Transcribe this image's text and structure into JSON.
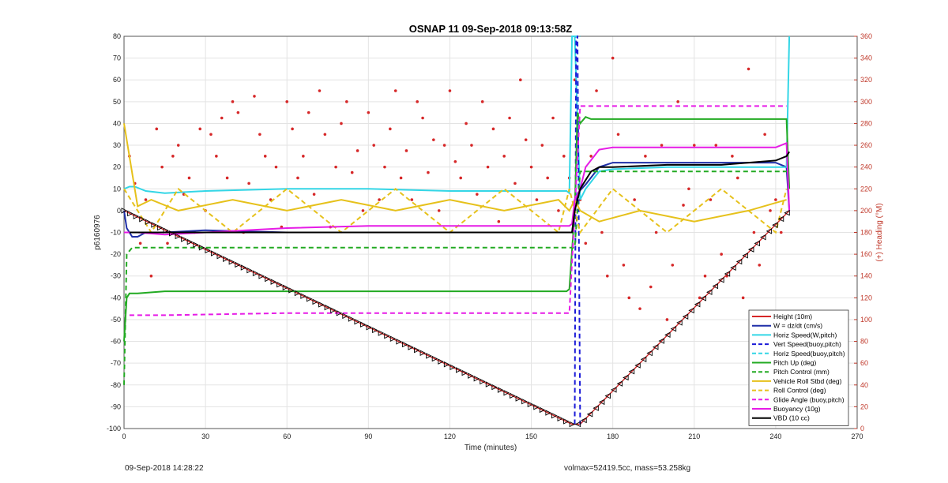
{
  "chart_data": {
    "type": "line",
    "title": "OSNAP 11 09-Sep-2018 09:13:58Z",
    "xlabel": "Time (minutes)",
    "ylabel": "p6160976",
    "ylabel_right": "(+) Heading (°M)",
    "xlim": [
      0,
      270
    ],
    "ylim": [
      -100,
      80
    ],
    "ylim_right": [
      0,
      360
    ],
    "xticks": [
      0,
      30,
      60,
      90,
      120,
      150,
      180,
      210,
      240,
      270
    ],
    "yticks": [
      80,
      70,
      60,
      50,
      40,
      30,
      20,
      10,
      0,
      -10,
      -20,
      -30,
      -40,
      -50,
      -60,
      -70,
      -80,
      -90,
      -100
    ],
    "yticks_right": [
      360,
      340,
      320,
      300,
      280,
      260,
      240,
      220,
      200,
      180,
      160,
      140,
      120,
      100,
      80,
      60,
      40,
      20,
      0
    ],
    "grid": true,
    "legend_position": "bottom-right",
    "series": [
      {
        "name": "Height (10m)",
        "color": "#d62728",
        "style": "solid",
        "x": [
          0,
          165,
          168,
          245
        ],
        "y": [
          0,
          -98,
          -98,
          0
        ]
      },
      {
        "name": "W = dz/dt (cm/s)",
        "color": "#1f2fa8",
        "style": "solid",
        "x": [
          0,
          1,
          3,
          5,
          8,
          15,
          30,
          60,
          90,
          120,
          150,
          164,
          165,
          166,
          167,
          170,
          175,
          180,
          200,
          220,
          240,
          244,
          245
        ],
        "y": [
          0,
          -8,
          -12,
          -12,
          -10,
          -10,
          -9,
          -10,
          -10,
          -10,
          -10,
          -10,
          -10,
          0,
          8,
          12,
          20,
          22,
          22,
          22,
          22,
          20,
          0
        ]
      },
      {
        "name": "Horiz Speed(W,pitch)",
        "color": "#33d6e6",
        "style": "solid",
        "x": [
          0,
          2,
          4,
          8,
          15,
          30,
          60,
          90,
          120,
          150,
          163,
          164,
          165,
          166,
          168,
          170,
          175,
          180,
          200,
          220,
          240,
          244,
          245
        ],
        "y": [
          10,
          11,
          11,
          9,
          8,
          9,
          10,
          10,
          9,
          9,
          9,
          8,
          80,
          80,
          5,
          10,
          18,
          19,
          20,
          20,
          20,
          20,
          80
        ]
      },
      {
        "name": "Vert Speed(buoy,pitch)",
        "color": "#1b1bd8",
        "style": "dashed",
        "x": [
          166,
          166.5,
          167,
          168
        ],
        "y": [
          -98,
          80,
          80,
          -98
        ]
      },
      {
        "name": "Horiz Speed(buoy,pitch)",
        "color": "#33d6e6",
        "style": "dashed",
        "x": [
          165,
          168
        ],
        "y": [
          80,
          80
        ]
      },
      {
        "name": "Pitch Up (deg)",
        "color": "#22aa22",
        "style": "solid",
        "x": [
          0,
          1,
          2,
          5,
          15,
          30,
          60,
          90,
          120,
          150,
          163,
          164,
          166,
          167,
          168,
          170,
          172,
          180,
          200,
          220,
          240,
          244,
          245
        ],
        "y": [
          -60,
          -40,
          -38,
          -38,
          -37,
          -37,
          -37,
          -37,
          -37,
          -37,
          -37,
          -36,
          0,
          45,
          40,
          43,
          42,
          42,
          42,
          42,
          42,
          42,
          10
        ]
      },
      {
        "name": "Pitch Control (mm)",
        "color": "#22aa22",
        "style": "dashed",
        "x": [
          0,
          1,
          3,
          164,
          165,
          166,
          168,
          244,
          245
        ],
        "y": [
          -80,
          -20,
          -17,
          -17,
          -17,
          -17,
          18,
          18,
          18
        ]
      },
      {
        "name": "Vehicle Roll Stbd (deg)",
        "color": "#e6c11b",
        "style": "solid",
        "x": [
          0,
          5,
          10,
          20,
          40,
          60,
          80,
          100,
          120,
          140,
          160,
          164,
          166,
          168,
          175,
          190,
          210,
          230,
          244
        ],
        "y": [
          40,
          2,
          5,
          0,
          5,
          0,
          5,
          0,
          5,
          0,
          5,
          0,
          5,
          0,
          -5,
          0,
          -5,
          0,
          5
        ]
      },
      {
        "name": "Roll Control (deg)",
        "color": "#e6c11b",
        "style": "dashed",
        "x": [
          0,
          10,
          20,
          40,
          60,
          80,
          100,
          120,
          140,
          160,
          164,
          168,
          180,
          200,
          220,
          240,
          244
        ],
        "y": [
          10,
          -10,
          10,
          -10,
          10,
          -10,
          10,
          -10,
          10,
          -10,
          10,
          -10,
          10,
          -10,
          10,
          -10,
          10
        ]
      },
      {
        "name": "Glide Angle (buoy,pitch)",
        "color": "#e61be6",
        "style": "dashed",
        "x": [
          2,
          15,
          60,
          90,
          120,
          150,
          164,
          168,
          170,
          180,
          200,
          220,
          240,
          244
        ],
        "y": [
          -48,
          -48,
          -47,
          -47,
          -47,
          -47,
          -47,
          48,
          48,
          48,
          48,
          48,
          48,
          48
        ]
      },
      {
        "name": "Buoyancy (10g)",
        "color": "#e61be6",
        "style": "solid",
        "x": [
          0,
          5,
          15,
          30,
          60,
          90,
          120,
          150,
          164,
          165,
          166,
          168,
          170,
          175,
          180,
          200,
          220,
          240,
          244,
          245
        ],
        "y": [
          -10,
          -10,
          -11,
          -10,
          -8,
          -7,
          -7,
          -7,
          -7,
          -6,
          5,
          10,
          20,
          28,
          29,
          29,
          29,
          29,
          31,
          0
        ]
      },
      {
        "name": "VBD (10 cc)",
        "color": "#000000",
        "style": "solid",
        "x": [
          2,
          15,
          30,
          60,
          90,
          120,
          150,
          164,
          165,
          166,
          168,
          170,
          172,
          175,
          180,
          200,
          220,
          240,
          244,
          245
        ],
        "y": [
          -10,
          -10,
          -10,
          -10,
          -10,
          -10,
          -10,
          -10,
          -10,
          0,
          10,
          14,
          18,
          20,
          20,
          21,
          21,
          23,
          25,
          27
        ]
      }
    ],
    "heading": {
      "name": "Heading",
      "color": "#d62728",
      "x": [
        2,
        4,
        6,
        8,
        10,
        12,
        14,
        16,
        18,
        20,
        22,
        24,
        26,
        28,
        30,
        32,
        34,
        36,
        38,
        40,
        42,
        44,
        46,
        48,
        50,
        52,
        54,
        56,
        58,
        60,
        62,
        64,
        66,
        68,
        70,
        72,
        74,
        76,
        78,
        80,
        82,
        84,
        86,
        88,
        90,
        92,
        94,
        96,
        98,
        100,
        102,
        104,
        106,
        108,
        110,
        112,
        114,
        116,
        118,
        120,
        122,
        124,
        126,
        128,
        130,
        132,
        134,
        136,
        138,
        140,
        142,
        144,
        146,
        148,
        150,
        152,
        154,
        156,
        158,
        160,
        162,
        164,
        166,
        168,
        170,
        172,
        174,
        176,
        178,
        180,
        182,
        184,
        186,
        188,
        190,
        192,
        194,
        196,
        198,
        200,
        202,
        204,
        206,
        208,
        210,
        212,
        214,
        216,
        218,
        220,
        222,
        224,
        226,
        228,
        230,
        232,
        234,
        236,
        238,
        240,
        242,
        244
      ],
      "y": [
        250,
        225,
        170,
        210,
        140,
        275,
        240,
        170,
        250,
        260,
        215,
        230,
        180,
        275,
        200,
        270,
        250,
        285,
        230,
        300,
        290,
        180,
        225,
        305,
        270,
        250,
        210,
        240,
        185,
        300,
        275,
        230,
        250,
        290,
        215,
        310,
        270,
        185,
        240,
        280,
        300,
        235,
        255,
        200,
        290,
        260,
        210,
        240,
        275,
        310,
        230,
        255,
        210,
        300,
        285,
        235,
        265,
        200,
        260,
        310,
        245,
        230,
        280,
        260,
        215,
        300,
        240,
        275,
        190,
        250,
        285,
        225,
        320,
        265,
        240,
        210,
        260,
        230,
        285,
        200,
        250,
        230,
        320,
        210,
        170,
        250,
        310,
        180,
        140,
        340,
        270,
        150,
        120,
        210,
        110,
        250,
        130,
        180,
        260,
        100,
        150,
        300,
        205,
        220,
        260,
        120,
        140,
        210,
        260,
        160,
        140,
        250,
        230,
        120,
        330,
        180,
        150,
        270,
        200,
        210,
        180,
        240
      ]
    }
  },
  "footer": {
    "timestamp": "09-Sep-2018 14:28:22",
    "vol_mass": "volmax=52419.5cc, mass=53.258kg"
  }
}
